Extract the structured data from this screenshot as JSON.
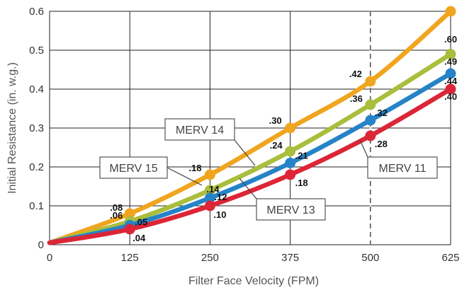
{
  "chart_data": {
    "type": "line",
    "xlabel": "Filter Face Velocity (FPM)",
    "ylabel": "Initial Resistance (in. w.g.)",
    "xlim": [
      0,
      625
    ],
    "ylim": [
      0,
      0.6
    ],
    "x_ticks": [
      "0",
      "125",
      "250",
      "375",
      "500",
      "625"
    ],
    "y_ticks": [
      "0",
      "0.1",
      "0.2",
      "0.3",
      "0.4",
      "0.5",
      "0.6"
    ],
    "grid": true,
    "reference_line_x": 500,
    "x": [
      125,
      250,
      375,
      500,
      625
    ],
    "series": [
      {
        "name": "MERV 15",
        "color": "#F0A51F",
        "values": [
          0.08,
          0.18,
          0.3,
          0.42,
          0.6
        ],
        "labels": [
          ".08",
          ".18",
          ".30",
          ".42",
          ".60"
        ]
      },
      {
        "name": "MERV 14",
        "color": "#A9BE3C",
        "values": [
          0.06,
          0.14,
          0.24,
          0.36,
          0.49
        ],
        "labels": [
          ".06",
          ".14",
          ".24",
          ".36",
          ".49"
        ]
      },
      {
        "name": "MERV 13",
        "color": "#2583C7",
        "values": [
          0.05,
          0.12,
          0.21,
          0.32,
          0.44
        ],
        "labels": [
          ".05",
          ".12",
          ".21",
          ".32",
          ".44"
        ]
      },
      {
        "name": "MERV 11",
        "color": "#DC2537",
        "values": [
          0.04,
          0.1,
          0.18,
          0.28,
          0.4
        ],
        "labels": [
          ".04",
          ".10",
          ".18",
          ".28",
          ".40"
        ]
      }
    ]
  }
}
